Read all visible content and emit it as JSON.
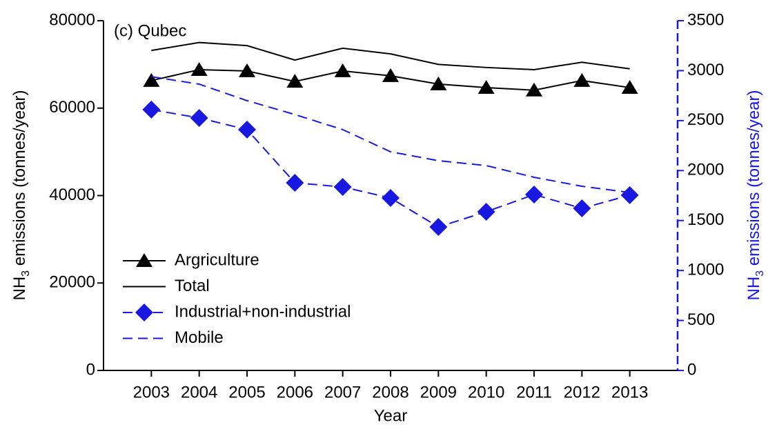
{
  "chart_data": {
    "type": "line",
    "annotation": "(c) Qubec",
    "x_label": "Year",
    "y_label": {
      "main": "NH",
      "sub": "3",
      "rest": " emissions (tonnes/year)"
    },
    "y2_label": {
      "main": "NH",
      "sub": "3",
      "rest": " emissions (tonnes/year)"
    },
    "x": [
      2003,
      2004,
      2005,
      2006,
      2007,
      2008,
      2009,
      2010,
      2011,
      2012,
      2013
    ],
    "xlim": [
      2002,
      2014
    ],
    "xticks": [
      2003,
      2004,
      2005,
      2006,
      2007,
      2008,
      2009,
      2010,
      2011,
      2012,
      2013
    ],
    "ylim": [
      0,
      80000
    ],
    "yticks": [
      0,
      20000,
      40000,
      60000,
      80000
    ],
    "y2lim": [
      0,
      3500
    ],
    "y2ticks": [
      0,
      500,
      1000,
      1500,
      2000,
      2500,
      3000,
      3500
    ],
    "y2_color": "#1818e0",
    "legend": "lower left",
    "series": [
      {
        "name": "Argriculture",
        "color": "#000000",
        "marker": "triangle",
        "dashed": false,
        "values": [
          66300,
          68800,
          68500,
          66100,
          68500,
          67400,
          65500,
          64700,
          64100,
          66300,
          64700
        ]
      },
      {
        "name": "Total",
        "color": "#000000",
        "marker": null,
        "dashed": false,
        "values": [
          73200,
          75000,
          74300,
          71000,
          73700,
          72400,
          70000,
          69300,
          68800,
          70500,
          69000
        ]
      },
      {
        "name": "Industrial+non-industrial",
        "color": "#1818e0",
        "marker": "diamond",
        "dashed": true,
        "axis": "y2",
        "values": [
          2610,
          2527,
          2410,
          1878,
          1836,
          1726,
          1436,
          1588,
          1760,
          1622,
          1754
        ]
      },
      {
        "name": "Mobile",
        "color": "#1818e0",
        "marker": null,
        "dashed": true,
        "axis": "y2",
        "values": [
          2940,
          2865,
          2700,
          2561,
          2410,
          2188,
          2099,
          2050,
          1933,
          1843,
          1781
        ]
      }
    ]
  }
}
